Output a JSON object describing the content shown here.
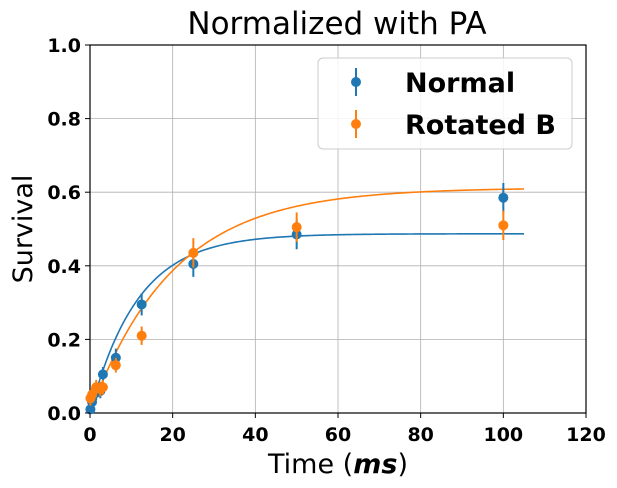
{
  "chart_data": {
    "type": "scatter",
    "title": "Normalized with PA",
    "xlabel_prefix": "Time (",
    "xlabel_unit": "ms",
    "xlabel_suffix": ")",
    "ylabel": "Survival",
    "xlim": [
      0,
      120
    ],
    "ylim": [
      0,
      1.0
    ],
    "xticks": [
      "0",
      "20",
      "40",
      "60",
      "80",
      "100",
      "120"
    ],
    "yticks": [
      "0.0",
      "0.2",
      "0.4",
      "0.6",
      "0.8",
      "1.0"
    ],
    "grid": true,
    "legend_position": "top-right",
    "series": [
      {
        "name": "Normal",
        "color": "#1f77b4",
        "points": [
          {
            "x": 0.1,
            "y": 0.01,
            "err": 0.01
          },
          {
            "x": 0.5,
            "y": 0.03,
            "err": 0.02
          },
          {
            "x": 1.5,
            "y": 0.055,
            "err": 0.02
          },
          {
            "x": 2.5,
            "y": 0.06,
            "err": 0.02
          },
          {
            "x": 3.125,
            "y": 0.105,
            "err": 0.02
          },
          {
            "x": 6.25,
            "y": 0.15,
            "err": 0.025
          },
          {
            "x": 12.5,
            "y": 0.295,
            "err": 0.03
          },
          {
            "x": 25,
            "y": 0.405,
            "err": 0.035
          },
          {
            "x": 50,
            "y": 0.485,
            "err": 0.04
          },
          {
            "x": 100,
            "y": 0.585,
            "err": 0.04
          }
        ],
        "fit": {
          "amplitude": 0.487,
          "tau": 11.5,
          "xmax": 105
        }
      },
      {
        "name": "Rotated B",
        "color": "#ff7f0e",
        "points": [
          {
            "x": 0.1,
            "y": 0.04,
            "err": 0.02
          },
          {
            "x": 0.5,
            "y": 0.05,
            "err": 0.02
          },
          {
            "x": 1.5,
            "y": 0.07,
            "err": 0.02
          },
          {
            "x": 2.5,
            "y": 0.065,
            "err": 0.02
          },
          {
            "x": 3.125,
            "y": 0.07,
            "err": 0.02
          },
          {
            "x": 6.25,
            "y": 0.13,
            "err": 0.02
          },
          {
            "x": 12.5,
            "y": 0.21,
            "err": 0.025
          },
          {
            "x": 25,
            "y": 0.435,
            "err": 0.04
          },
          {
            "x": 50,
            "y": 0.505,
            "err": 0.04
          },
          {
            "x": 100,
            "y": 0.51,
            "err": 0.04
          }
        ],
        "fit": {
          "amplitude": 0.612,
          "tau": 20.0,
          "xmax": 105
        }
      }
    ]
  }
}
